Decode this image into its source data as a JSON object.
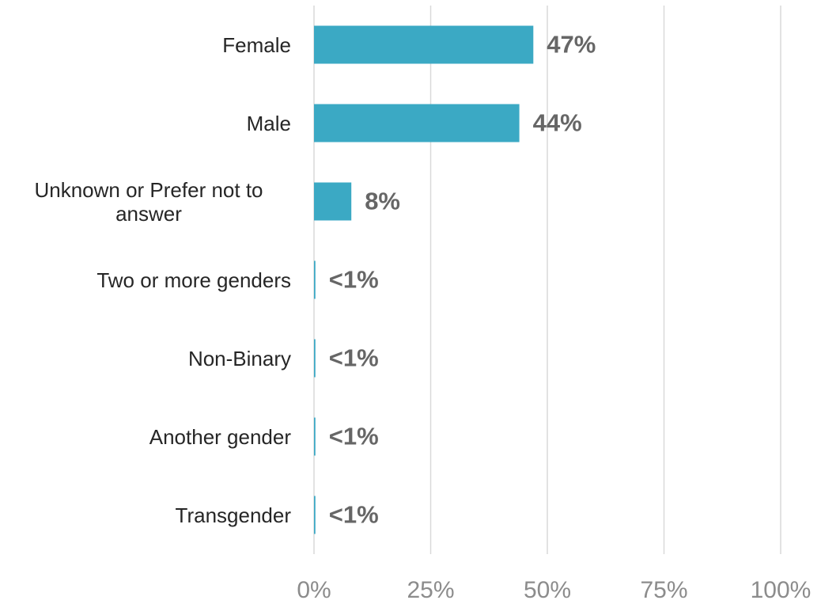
{
  "chart_data": {
    "type": "bar",
    "orientation": "horizontal",
    "categories": [
      "Female",
      "Male",
      "Unknown or Prefer not to answer",
      "Two or more genders",
      "Non-Binary",
      "Another gender",
      "Transgender"
    ],
    "values": [
      47,
      44,
      8,
      0.3,
      0.3,
      0.3,
      0.3
    ],
    "value_labels": [
      "47%",
      "44%",
      "8%",
      "<1%",
      "<1%",
      "<1%",
      "<1%"
    ],
    "color": "#3ba9c4",
    "xlim": [
      0,
      100
    ],
    "xticks": [
      {
        "value": 0,
        "label": "0%"
      },
      {
        "value": 25,
        "label": "25%"
      },
      {
        "value": 50,
        "label": "50%"
      },
      {
        "value": 75,
        "label": "75%"
      },
      {
        "value": 100,
        "label": "100%"
      }
    ],
    "grid": true
  }
}
